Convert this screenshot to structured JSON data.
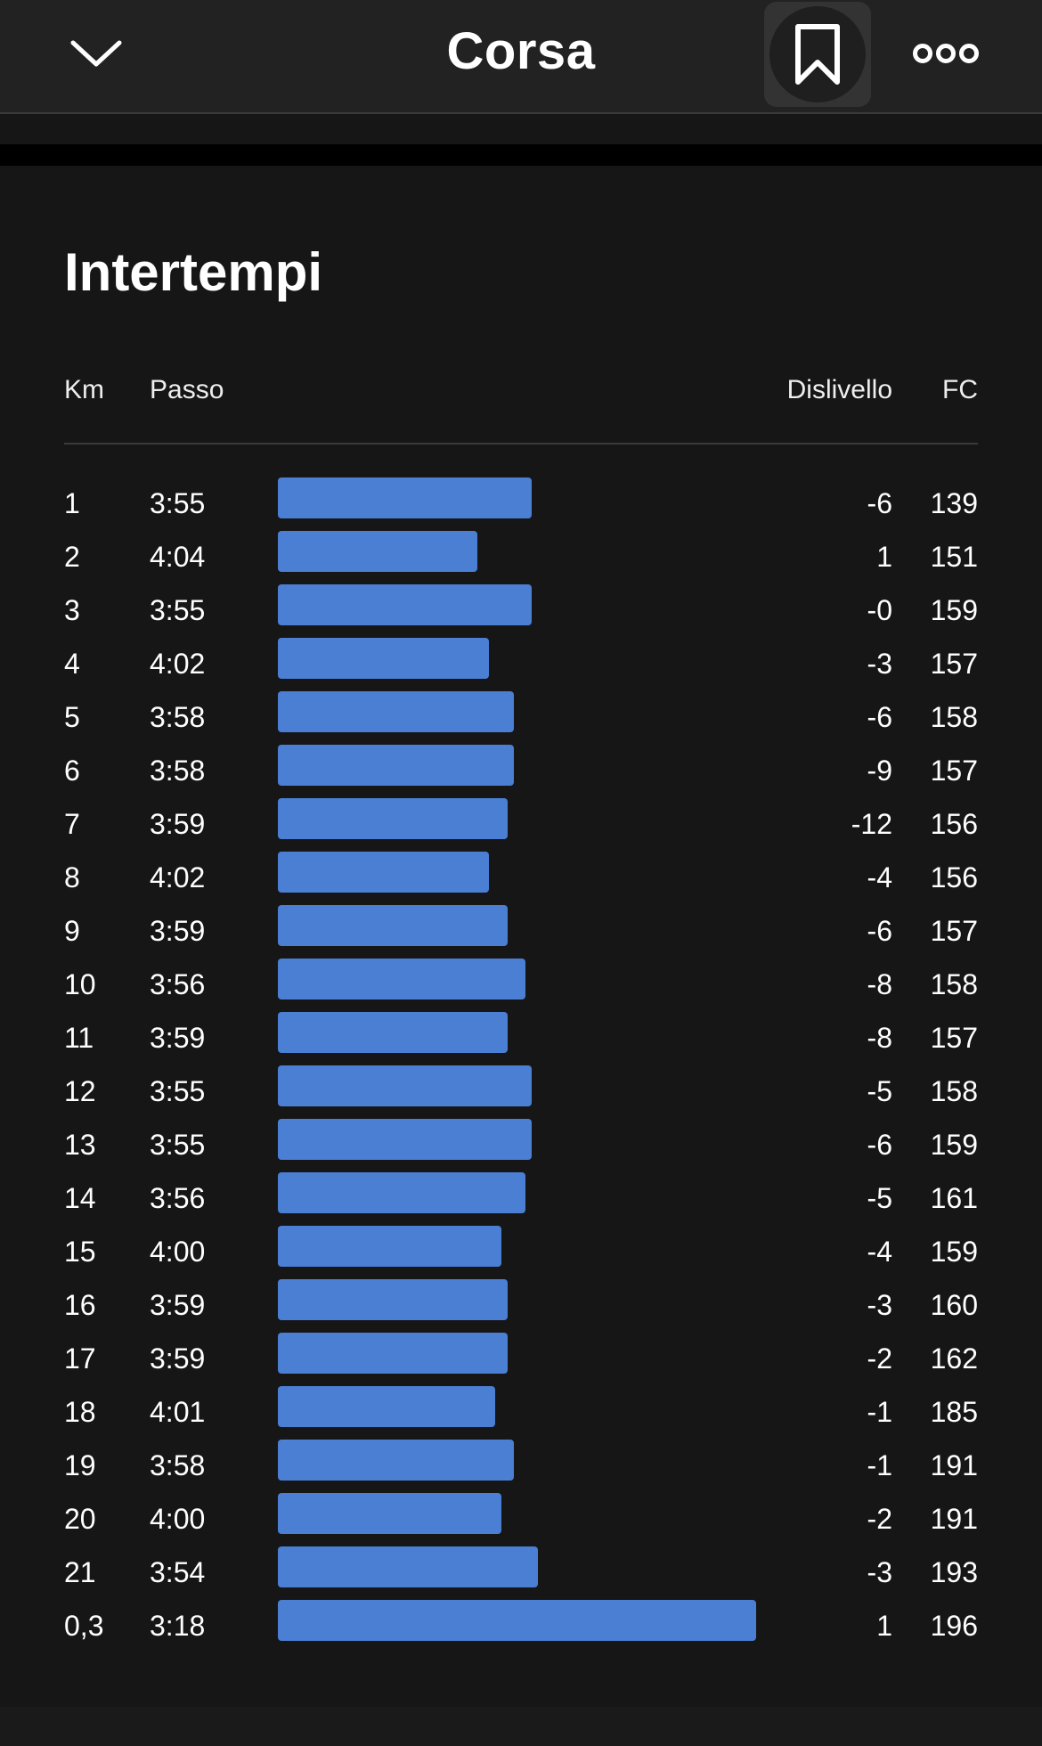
{
  "header": {
    "title": "Corsa",
    "back_icon": "chevron-down-icon",
    "bookmark_icon": "bookmark-icon",
    "more_icon": "more-icon"
  },
  "splits": {
    "title": "Intertempi",
    "columns": {
      "km": "Km",
      "pace": "Passo",
      "elevation": "Dislivello",
      "hr": "FC"
    },
    "bar_color": "#4a7fd4",
    "pace_scale_seconds_max": 230,
    "rows": [
      {
        "km": "1",
        "pace": "3:55",
        "elevation": "-6",
        "hr": "139"
      },
      {
        "km": "2",
        "pace": "4:04",
        "elevation": "1",
        "hr": "151"
      },
      {
        "km": "3",
        "pace": "3:55",
        "elevation": "-0",
        "hr": "159"
      },
      {
        "km": "4",
        "pace": "4:02",
        "elevation": "-3",
        "hr": "157"
      },
      {
        "km": "5",
        "pace": "3:58",
        "elevation": "-6",
        "hr": "158"
      },
      {
        "km": "6",
        "pace": "3:58",
        "elevation": "-9",
        "hr": "157"
      },
      {
        "km": "7",
        "pace": "3:59",
        "elevation": "-12",
        "hr": "156"
      },
      {
        "km": "8",
        "pace": "4:02",
        "elevation": "-4",
        "hr": "156"
      },
      {
        "km": "9",
        "pace": "3:59",
        "elevation": "-6",
        "hr": "157"
      },
      {
        "km": "10",
        "pace": "3:56",
        "elevation": "-8",
        "hr": "158"
      },
      {
        "km": "11",
        "pace": "3:59",
        "elevation": "-8",
        "hr": "157"
      },
      {
        "km": "12",
        "pace": "3:55",
        "elevation": "-5",
        "hr": "158"
      },
      {
        "km": "13",
        "pace": "3:55",
        "elevation": "-6",
        "hr": "159"
      },
      {
        "km": "14",
        "pace": "3:56",
        "elevation": "-5",
        "hr": "161"
      },
      {
        "km": "15",
        "pace": "4:00",
        "elevation": "-4",
        "hr": "159"
      },
      {
        "km": "16",
        "pace": "3:59",
        "elevation": "-3",
        "hr": "160"
      },
      {
        "km": "17",
        "pace": "3:59",
        "elevation": "-2",
        "hr": "162"
      },
      {
        "km": "18",
        "pace": "4:01",
        "elevation": "-1",
        "hr": "185"
      },
      {
        "km": "19",
        "pace": "3:58",
        "elevation": "-1",
        "hr": "191"
      },
      {
        "km": "20",
        "pace": "4:00",
        "elevation": "-2",
        "hr": "191"
      },
      {
        "km": "21",
        "pace": "3:54",
        "elevation": "-3",
        "hr": "193"
      },
      {
        "km": "0,3",
        "pace": "3:18",
        "elevation": "1",
        "hr": "196"
      }
    ]
  }
}
